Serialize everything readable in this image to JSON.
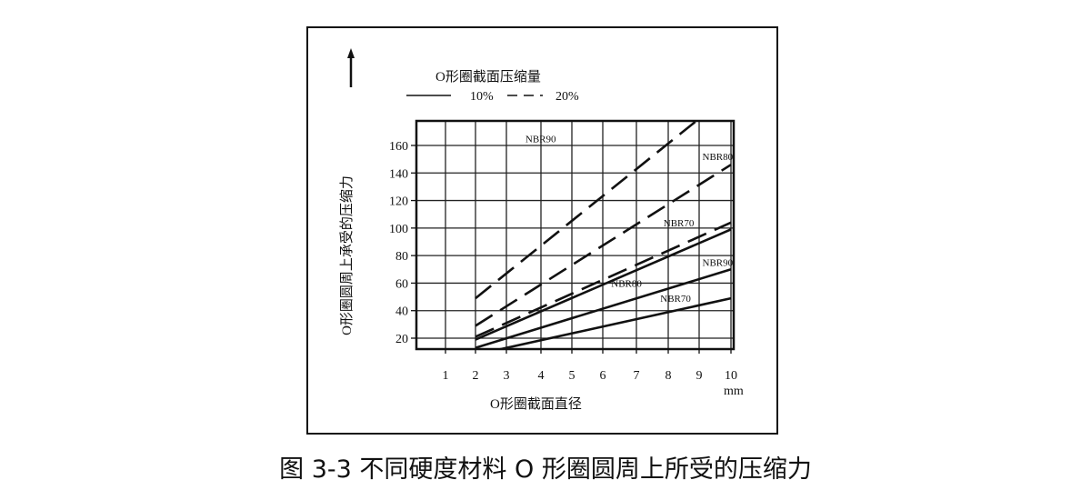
{
  "chart_data": {
    "type": "line",
    "legend_title": "O形圈截面压缩量",
    "legend": [
      {
        "label": "10%",
        "style": "solid"
      },
      {
        "label": "20%",
        "style": "dashed"
      }
    ],
    "legend_placement": "top-left",
    "ylabel": "O形圈圆周上承受的压缩力",
    "xlabel": "O形圈截面直径",
    "xunit": "mm",
    "x_ticks": [
      1,
      2,
      3,
      4,
      5,
      6,
      7,
      8,
      9,
      10
    ],
    "y_ticks": [
      20,
      40,
      60,
      80,
      100,
      120,
      140,
      160
    ],
    "xlim": [
      0,
      10
    ],
    "ylim": [
      0,
      170
    ],
    "grid": true,
    "series": [
      {
        "name": "NBR90",
        "compression": "20%",
        "style": "dashed",
        "x": [
          2,
          10
        ],
        "y": [
          49,
          198
        ],
        "label_x": 3.55,
        "label_y": 165
      },
      {
        "name": "NBR80",
        "compression": "20%",
        "style": "dashed",
        "x": [
          2,
          10
        ],
        "y": [
          29,
          146
        ],
        "label_x": 9.1,
        "label_y": 152
      },
      {
        "name": "NBR70",
        "compression": "20%",
        "style": "dashed",
        "x": [
          2,
          10
        ],
        "y": [
          21,
          104
        ],
        "label_x": 7.85,
        "label_y": 104
      },
      {
        "name": "NBR90",
        "compression": "10%",
        "style": "solid",
        "x": [
          2,
          10
        ],
        "y": [
          19,
          99
        ],
        "label_x": 9.1,
        "label_y": 75
      },
      {
        "name": "NBR80",
        "compression": "10%",
        "style": "solid",
        "x": [
          2,
          10
        ],
        "y": [
          13,
          70
        ],
        "label_x": 6.25,
        "label_y": 60
      },
      {
        "name": "NBR70",
        "compression": "10%",
        "style": "solid",
        "x": [
          2,
          10
        ],
        "y": [
          8,
          49
        ],
        "label_x": 7.75,
        "label_y": 49
      }
    ]
  },
  "caption": "图 3-3 不同硬度材料 O 形圈圆周上所受的压缩力"
}
